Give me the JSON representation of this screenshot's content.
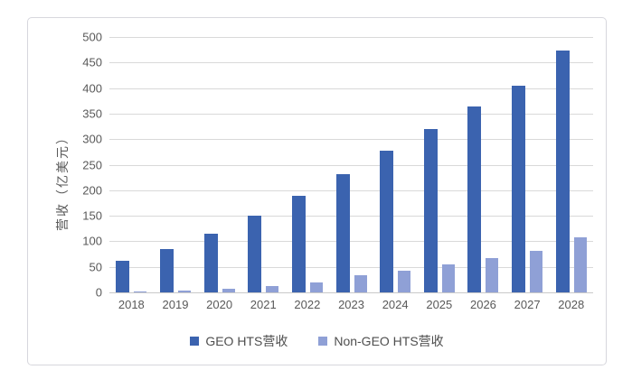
{
  "chart_data": {
    "type": "bar",
    "title": "",
    "xlabel": "",
    "ylabel": "营收（亿美元）",
    "categories": [
      "2018",
      "2019",
      "2020",
      "2021",
      "2022",
      "2023",
      "2024",
      "2025",
      "2026",
      "2027",
      "2028"
    ],
    "series": [
      {
        "name": "GEO HTS营收",
        "color": "#3b63af",
        "values": [
          62,
          85,
          115,
          150,
          189,
          232,
          277,
          320,
          364,
          405,
          474
        ]
      },
      {
        "name": "Non-GEO HTS营收",
        "color": "#8fa0d6",
        "values": [
          2,
          3,
          8,
          13,
          19,
          33,
          43,
          54,
          68,
          82,
          108
        ]
      }
    ],
    "ylim": [
      0,
      500
    ],
    "y_tick_step": 50,
    "grid": true,
    "legend_position": "bottom"
  },
  "colors": {
    "grid": "#d9d9d9",
    "axis_text": "#595959",
    "panel_border": "#d7d7dd",
    "background": "#ffffff"
  }
}
